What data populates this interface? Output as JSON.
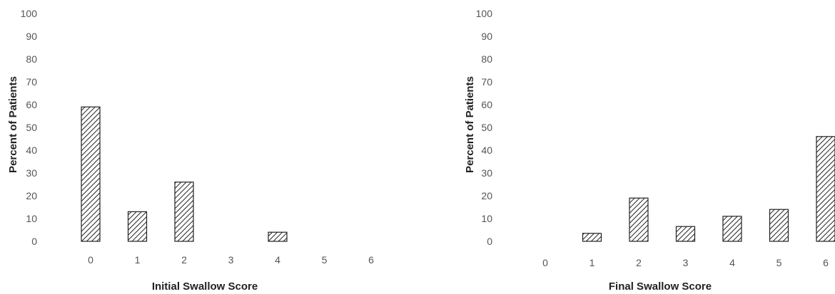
{
  "chart_data": [
    {
      "type": "bar",
      "xlabel": "Initial Swallow Score",
      "ylabel": "Percent of Patients",
      "ylim": [
        0,
        100
      ],
      "yticks": [
        0,
        10,
        20,
        30,
        40,
        50,
        60,
        70,
        80,
        90,
        100
      ],
      "categories": [
        "0",
        "1",
        "2",
        "3",
        "4",
        "5",
        "6"
      ],
      "values": [
        59,
        13,
        26,
        0,
        4,
        0,
        0
      ],
      "bar_fill": "diagonal-hatch",
      "grid": false,
      "legend": "none"
    },
    {
      "type": "bar",
      "xlabel": "Final Swallow Score",
      "ylabel": "Percent of Patients",
      "ylim": [
        0,
        100
      ],
      "yticks": [
        0,
        10,
        20,
        30,
        40,
        50,
        60,
        70,
        80,
        90,
        100
      ],
      "categories": [
        "0",
        "1",
        "2",
        "3",
        "4",
        "5",
        "6"
      ],
      "values": [
        0,
        3.5,
        19,
        6.5,
        11,
        14,
        46
      ],
      "bar_fill": "diagonal-hatch",
      "grid": false,
      "legend": "none"
    }
  ],
  "colors": {
    "bar_stroke": "#222222",
    "hatch": "#222222",
    "text": "#555555"
  }
}
